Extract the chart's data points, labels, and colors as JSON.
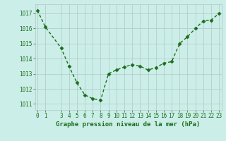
{
  "x": [
    0,
    1,
    3,
    4,
    5,
    6,
    7,
    8,
    9,
    10,
    11,
    12,
    13,
    14,
    15,
    16,
    17,
    18,
    19,
    20,
    21,
    22,
    23
  ],
  "y": [
    1017.2,
    1016.1,
    1014.7,
    1013.5,
    1012.4,
    1011.6,
    1011.35,
    1011.25,
    1013.0,
    1013.25,
    1013.45,
    1013.6,
    1013.5,
    1013.25,
    1013.4,
    1013.7,
    1013.8,
    1015.0,
    1015.45,
    1016.0,
    1016.5,
    1016.55,
    1017.0
  ],
  "line_color": "#1a6e1a",
  "marker": "D",
  "markersize": 2.5,
  "linewidth": 1.0,
  "bg_color": "#cceee8",
  "grid_color": "#b0c8c4",
  "xlabel": "Graphe pression niveau de la mer (hPa)",
  "xlabel_color": "#1a6e1a",
  "xlabel_fontsize": 6.5,
  "tick_color": "#1a6e1a",
  "tick_fontsize": 5.5,
  "ytick_labels": [
    "1011",
    "1012",
    "1013",
    "1014",
    "1015",
    "1016",
    "1017"
  ],
  "ytick_values": [
    1011,
    1012,
    1013,
    1014,
    1015,
    1016,
    1017
  ],
  "xtick_values": [
    0,
    1,
    3,
    4,
    5,
    6,
    7,
    8,
    9,
    10,
    11,
    12,
    13,
    14,
    15,
    16,
    17,
    18,
    19,
    20,
    21,
    22,
    23
  ],
  "ylim": [
    1010.6,
    1017.6
  ],
  "xlim": [
    -0.3,
    23.3
  ]
}
